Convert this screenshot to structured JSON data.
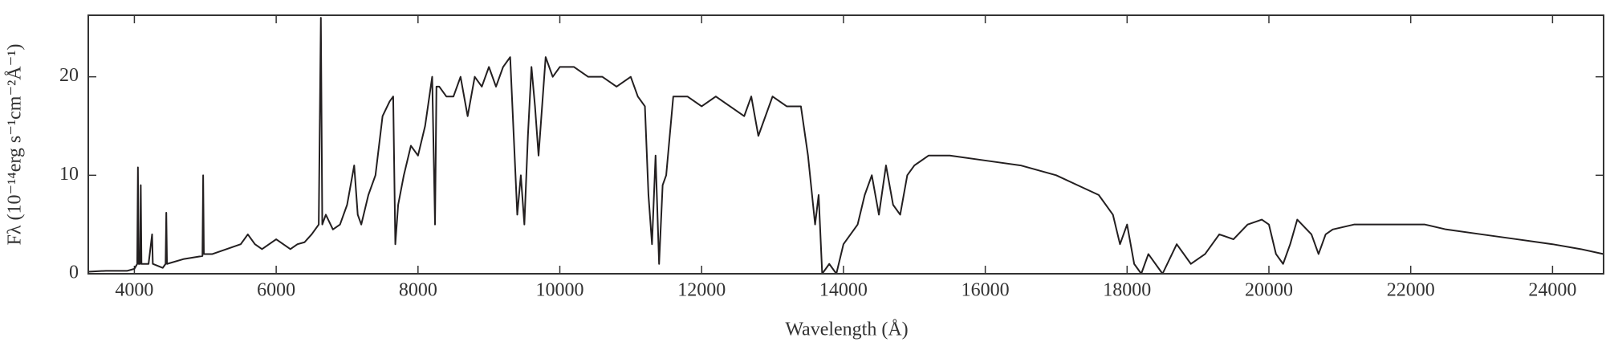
{
  "chart_data": {
    "type": "line",
    "x_label": "Wavelength (Å)",
    "y_label": "Fλ (10⁻¹⁴erg s⁻¹cm⁻²Å⁻¹)",
    "xlim": [
      3350,
      24720
    ],
    "ylim": [
      0,
      26.25
    ],
    "xticks": [
      4000,
      6000,
      8000,
      10000,
      12000,
      14000,
      16000,
      18000,
      20000,
      22000,
      24000
    ],
    "yticks": [
      0,
      10,
      20
    ],
    "color": "#231f20",
    "x": [
      3350,
      3600,
      3900,
      4000,
      4040,
      4050,
      4060,
      4080,
      4090,
      4100,
      4200,
      4250,
      4260,
      4400,
      4440,
      4450,
      4460,
      4700,
      4960,
      4970,
      4980,
      5100,
      5300,
      5500,
      5600,
      5700,
      5800,
      5900,
      6000,
      6100,
      6200,
      6300,
      6400,
      6500,
      6600,
      6630,
      6650,
      6700,
      6800,
      6900,
      7000,
      7100,
      7150,
      7200,
      7300,
      7400,
      7500,
      7600,
      7650,
      7680,
      7720,
      7800,
      7900,
      8000,
      8100,
      8200,
      8240,
      8260,
      8300,
      8400,
      8500,
      8600,
      8700,
      8800,
      8900,
      9000,
      9100,
      9200,
      9300,
      9350,
      9400,
      9450,
      9500,
      9550,
      9600,
      9650,
      9700,
      9800,
      9900,
      10000,
      10200,
      10400,
      10600,
      10800,
      11000,
      11100,
      11200,
      11250,
      11300,
      11350,
      11400,
      11450,
      11500,
      11600,
      11800,
      12000,
      12200,
      12400,
      12600,
      12700,
      12800,
      13000,
      13200,
      13400,
      13500,
      13600,
      13650,
      13700,
      13800,
      13900,
      14000,
      14100,
      14200,
      14300,
      14400,
      14500,
      14600,
      14700,
      14800,
      14900,
      15000,
      15200,
      15500,
      16000,
      16500,
      17000,
      17300,
      17600,
      17800,
      17900,
      18000,
      18100,
      18200,
      18300,
      18500,
      18700,
      18900,
      19100,
      19300,
      19500,
      19700,
      19900,
      20000,
      20100,
      20200,
      20300,
      20400,
      20600,
      20700,
      20800,
      20900,
      21200,
      21600,
      22000,
      22200,
      22500,
      23000,
      23500,
      24000,
      24400,
      24720
    ],
    "values": [
      0.2,
      0.3,
      0.3,
      0.5,
      1,
      10.8,
      1,
      1,
      9,
      1,
      1,
      4,
      1,
      0.6,
      1,
      6.2,
      1,
      1.5,
      1.8,
      10,
      2,
      2,
      2.5,
      3,
      4,
      3,
      2.5,
      3,
      3.5,
      3,
      2.5,
      3,
      3.2,
      4,
      5,
      26,
      5,
      6,
      4.5,
      5,
      7,
      11,
      6,
      5,
      8,
      10,
      16,
      17.5,
      18,
      3,
      7,
      10,
      13,
      12,
      15,
      20,
      5,
      19,
      19,
      18,
      18,
      20,
      16,
      20,
      19,
      21,
      19,
      21,
      22,
      14,
      6,
      10,
      5,
      14,
      21,
      17,
      12,
      22,
      20,
      21,
      21,
      20,
      20,
      19,
      20,
      18,
      17,
      8,
      3,
      12,
      1,
      9,
      10,
      18,
      18,
      17,
      18,
      17,
      16,
      18,
      14,
      18,
      17,
      17,
      12,
      5,
      8,
      0,
      1,
      0,
      3,
      4,
      5,
      8,
      10,
      6,
      11,
      7,
      6,
      10,
      11,
      12,
      12,
      11.5,
      11,
      10,
      9,
      8,
      6,
      3,
      5,
      1,
      0,
      2,
      0,
      3,
      1,
      2,
      4,
      3.5,
      5,
      5.5,
      5,
      2,
      1,
      3,
      5.5,
      4,
      2,
      4,
      4.5,
      5,
      5,
      5,
      5,
      4.5,
      4,
      3.5,
      3,
      2.5,
      2
    ]
  }
}
